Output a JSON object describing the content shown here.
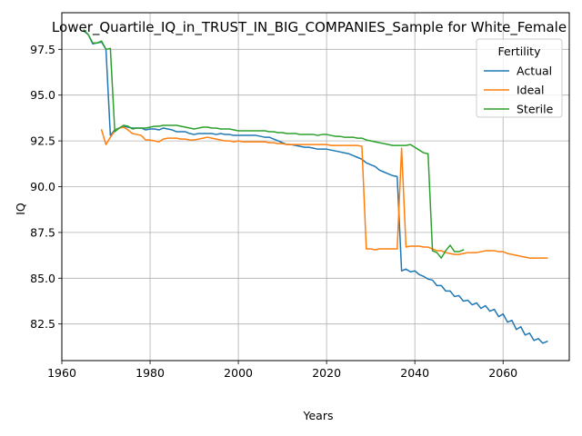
{
  "chart_data": {
    "type": "line",
    "title": "Lower_Quartile_IQ_in_TRUST_IN_BIG_COMPANIES_Sample for White_Female",
    "xlabel": "Years",
    "ylabel": "IQ",
    "xlim": [
      1960,
      2075
    ],
    "ylim": [
      80.5,
      99.5
    ],
    "xticks": [
      1960,
      1980,
      2000,
      2020,
      2040,
      2060
    ],
    "yticks": [
      82.5,
      85.0,
      87.5,
      90.0,
      92.5,
      95.0,
      97.5
    ],
    "grid": true,
    "legend": {
      "title": "Fertility",
      "position": "top-right"
    },
    "series": [
      {
        "name": "Actual",
        "color": "#1f77b4",
        "points": [
          [
            1965,
            98.5
          ],
          [
            1966,
            98.3
          ],
          [
            1967,
            97.8
          ],
          [
            1968,
            97.85
          ],
          [
            1969,
            97.9
          ],
          [
            1970,
            97.5
          ],
          [
            1971,
            92.8
          ],
          [
            1972,
            93.1
          ],
          [
            1973,
            93.2
          ],
          [
            1974,
            93.3
          ],
          [
            1975,
            93.25
          ],
          [
            1976,
            93.2
          ],
          [
            1977,
            93.2
          ],
          [
            1978,
            93.2
          ],
          [
            1979,
            93.1
          ],
          [
            1980,
            93.15
          ],
          [
            1981,
            93.15
          ],
          [
            1982,
            93.1
          ],
          [
            1983,
            93.2
          ],
          [
            1984,
            93.15
          ],
          [
            1985,
            93.1
          ],
          [
            1986,
            93.0
          ],
          [
            1987,
            93.0
          ],
          [
            1988,
            93.0
          ],
          [
            1989,
            92.9
          ],
          [
            1990,
            92.85
          ],
          [
            1991,
            92.9
          ],
          [
            1992,
            92.9
          ],
          [
            1993,
            92.9
          ],
          [
            1994,
            92.9
          ],
          [
            1995,
            92.85
          ],
          [
            1996,
            92.9
          ],
          [
            1997,
            92.85
          ],
          [
            1998,
            92.85
          ],
          [
            1999,
            92.8
          ],
          [
            2000,
            92.8
          ],
          [
            2001,
            92.8
          ],
          [
            2002,
            92.8
          ],
          [
            2003,
            92.8
          ],
          [
            2004,
            92.8
          ],
          [
            2005,
            92.75
          ],
          [
            2006,
            92.7
          ],
          [
            2007,
            92.7
          ],
          [
            2008,
            92.6
          ],
          [
            2009,
            92.5
          ],
          [
            2010,
            92.4
          ],
          [
            2011,
            92.3
          ],
          [
            2012,
            92.3
          ],
          [
            2013,
            92.25
          ],
          [
            2014,
            92.2
          ],
          [
            2015,
            92.15
          ],
          [
            2016,
            92.15
          ],
          [
            2017,
            92.1
          ],
          [
            2018,
            92.05
          ],
          [
            2019,
            92.05
          ],
          [
            2020,
            92.05
          ],
          [
            2021,
            92.0
          ],
          [
            2022,
            91.95
          ],
          [
            2023,
            91.9
          ],
          [
            2024,
            91.85
          ],
          [
            2025,
            91.8
          ],
          [
            2026,
            91.7
          ],
          [
            2027,
            91.6
          ],
          [
            2028,
            91.5
          ],
          [
            2029,
            91.3
          ],
          [
            2030,
            91.2
          ],
          [
            2031,
            91.1
          ],
          [
            2032,
            90.9
          ],
          [
            2033,
            90.8
          ],
          [
            2034,
            90.7
          ],
          [
            2035,
            90.6
          ],
          [
            2036,
            90.55
          ],
          [
            2037,
            85.4
          ],
          [
            2038,
            85.5
          ],
          [
            2039,
            85.35
          ],
          [
            2040,
            85.4
          ],
          [
            2041,
            85.2
          ],
          [
            2042,
            85.1
          ],
          [
            2043,
            84.95
          ],
          [
            2044,
            84.9
          ],
          [
            2045,
            84.6
          ],
          [
            2046,
            84.6
          ],
          [
            2047,
            84.3
          ],
          [
            2048,
            84.3
          ],
          [
            2049,
            84.0
          ],
          [
            2050,
            84.05
          ],
          [
            2051,
            83.75
          ],
          [
            2052,
            83.8
          ],
          [
            2053,
            83.55
          ],
          [
            2054,
            83.65
          ],
          [
            2055,
            83.35
          ],
          [
            2056,
            83.5
          ],
          [
            2057,
            83.2
          ],
          [
            2058,
            83.3
          ],
          [
            2059,
            82.9
          ],
          [
            2060,
            83.05
          ],
          [
            2061,
            82.6
          ],
          [
            2062,
            82.7
          ],
          [
            2063,
            82.2
          ],
          [
            2064,
            82.35
          ],
          [
            2065,
            81.9
          ],
          [
            2066,
            82.0
          ],
          [
            2067,
            81.6
          ],
          [
            2068,
            81.7
          ],
          [
            2069,
            81.45
          ],
          [
            2070,
            81.55
          ]
        ]
      },
      {
        "name": "Ideal",
        "color": "#ff7f0e",
        "points": [
          [
            1969,
            93.1
          ],
          [
            1970,
            92.3
          ],
          [
            1971,
            92.7
          ],
          [
            1972,
            93.05
          ],
          [
            1973,
            93.2
          ],
          [
            1974,
            93.25
          ],
          [
            1975,
            93.1
          ],
          [
            1976,
            92.9
          ],
          [
            1977,
            92.85
          ],
          [
            1978,
            92.8
          ],
          [
            1979,
            92.55
          ],
          [
            1980,
            92.55
          ],
          [
            1981,
            92.5
          ],
          [
            1982,
            92.45
          ],
          [
            1983,
            92.6
          ],
          [
            1984,
            92.65
          ],
          [
            1985,
            92.65
          ],
          [
            1986,
            92.65
          ],
          [
            1987,
            92.6
          ],
          [
            1988,
            92.6
          ],
          [
            1989,
            92.55
          ],
          [
            1990,
            92.55
          ],
          [
            1991,
            92.6
          ],
          [
            1992,
            92.65
          ],
          [
            1993,
            92.7
          ],
          [
            1994,
            92.65
          ],
          [
            1995,
            92.6
          ],
          [
            1996,
            92.55
          ],
          [
            1997,
            92.5
          ],
          [
            1998,
            92.5
          ],
          [
            1999,
            92.45
          ],
          [
            2000,
            92.5
          ],
          [
            2001,
            92.45
          ],
          [
            2002,
            92.45
          ],
          [
            2003,
            92.45
          ],
          [
            2004,
            92.45
          ],
          [
            2005,
            92.45
          ],
          [
            2006,
            92.45
          ],
          [
            2007,
            92.4
          ],
          [
            2008,
            92.4
          ],
          [
            2009,
            92.35
          ],
          [
            2010,
            92.35
          ],
          [
            2011,
            92.3
          ],
          [
            2012,
            92.3
          ],
          [
            2013,
            92.3
          ],
          [
            2014,
            92.3
          ],
          [
            2015,
            92.3
          ],
          [
            2016,
            92.3
          ],
          [
            2017,
            92.3
          ],
          [
            2018,
            92.3
          ],
          [
            2019,
            92.3
          ],
          [
            2020,
            92.3
          ],
          [
            2021,
            92.25
          ],
          [
            2022,
            92.25
          ],
          [
            2023,
            92.25
          ],
          [
            2024,
            92.25
          ],
          [
            2025,
            92.25
          ],
          [
            2026,
            92.25
          ],
          [
            2027,
            92.25
          ],
          [
            2028,
            92.2
          ],
          [
            2029,
            86.6
          ],
          [
            2030,
            86.6
          ],
          [
            2031,
            86.55
          ],
          [
            2032,
            86.6
          ],
          [
            2033,
            86.6
          ],
          [
            2034,
            86.6
          ],
          [
            2035,
            86.6
          ],
          [
            2036,
            86.6
          ],
          [
            2037,
            92.1
          ],
          [
            2038,
            86.7
          ],
          [
            2039,
            86.75
          ],
          [
            2040,
            86.75
          ],
          [
            2041,
            86.75
          ],
          [
            2042,
            86.7
          ],
          [
            2043,
            86.7
          ],
          [
            2044,
            86.6
          ],
          [
            2045,
            86.5
          ],
          [
            2046,
            86.5
          ],
          [
            2047,
            86.4
          ],
          [
            2048,
            86.35
          ],
          [
            2049,
            86.3
          ],
          [
            2050,
            86.3
          ],
          [
            2051,
            86.35
          ],
          [
            2052,
            86.4
          ],
          [
            2053,
            86.4
          ],
          [
            2054,
            86.4
          ],
          [
            2055,
            86.45
          ],
          [
            2056,
            86.5
          ],
          [
            2057,
            86.5
          ],
          [
            2058,
            86.5
          ],
          [
            2059,
            86.45
          ],
          [
            2060,
            86.45
          ],
          [
            2061,
            86.35
          ],
          [
            2062,
            86.3
          ],
          [
            2063,
            86.25
          ],
          [
            2064,
            86.2
          ],
          [
            2065,
            86.15
          ],
          [
            2066,
            86.1
          ],
          [
            2067,
            86.1
          ],
          [
            2068,
            86.1
          ],
          [
            2069,
            86.1
          ],
          [
            2070,
            86.1
          ]
        ]
      },
      {
        "name": "Sterile",
        "color": "#2ca02c",
        "points": [
          [
            1965,
            98.55
          ],
          [
            1966,
            98.3
          ],
          [
            1967,
            97.85
          ],
          [
            1968,
            97.85
          ],
          [
            1969,
            97.95
          ],
          [
            1970,
            97.5
          ],
          [
            1971,
            97.55
          ],
          [
            1972,
            93.0
          ],
          [
            1973,
            93.2
          ],
          [
            1974,
            93.35
          ],
          [
            1975,
            93.3
          ],
          [
            1976,
            93.15
          ],
          [
            1977,
            93.2
          ],
          [
            1978,
            93.2
          ],
          [
            1979,
            93.2
          ],
          [
            1980,
            93.25
          ],
          [
            1981,
            93.3
          ],
          [
            1982,
            93.3
          ],
          [
            1983,
            93.35
          ],
          [
            1984,
            93.35
          ],
          [
            1985,
            93.35
          ],
          [
            1986,
            93.35
          ],
          [
            1987,
            93.3
          ],
          [
            1988,
            93.25
          ],
          [
            1989,
            93.2
          ],
          [
            1990,
            93.15
          ],
          [
            1991,
            93.2
          ],
          [
            1992,
            93.25
          ],
          [
            1993,
            93.25
          ],
          [
            1994,
            93.2
          ],
          [
            1995,
            93.2
          ],
          [
            1996,
            93.15
          ],
          [
            1997,
            93.15
          ],
          [
            1998,
            93.15
          ],
          [
            1999,
            93.1
          ],
          [
            2000,
            93.05
          ],
          [
            2001,
            93.05
          ],
          [
            2002,
            93.05
          ],
          [
            2003,
            93.05
          ],
          [
            2004,
            93.05
          ],
          [
            2005,
            93.05
          ],
          [
            2006,
            93.05
          ],
          [
            2007,
            93.0
          ],
          [
            2008,
            93.0
          ],
          [
            2009,
            92.95
          ],
          [
            2010,
            92.95
          ],
          [
            2011,
            92.9
          ],
          [
            2012,
            92.9
          ],
          [
            2013,
            92.9
          ],
          [
            2014,
            92.85
          ],
          [
            2015,
            92.85
          ],
          [
            2016,
            92.85
          ],
          [
            2017,
            92.85
          ],
          [
            2018,
            92.8
          ],
          [
            2019,
            92.85
          ],
          [
            2020,
            92.85
          ],
          [
            2021,
            92.8
          ],
          [
            2022,
            92.75
          ],
          [
            2023,
            92.75
          ],
          [
            2024,
            92.7
          ],
          [
            2025,
            92.7
          ],
          [
            2026,
            92.7
          ],
          [
            2027,
            92.65
          ],
          [
            2028,
            92.65
          ],
          [
            2029,
            92.55
          ],
          [
            2030,
            92.5
          ],
          [
            2031,
            92.45
          ],
          [
            2032,
            92.4
          ],
          [
            2033,
            92.35
          ],
          [
            2034,
            92.3
          ],
          [
            2035,
            92.25
          ],
          [
            2036,
            92.25
          ],
          [
            2037,
            92.25
          ],
          [
            2038,
            92.25
          ],
          [
            2039,
            92.3
          ],
          [
            2040,
            92.15
          ],
          [
            2041,
            92.0
          ],
          [
            2042,
            91.85
          ],
          [
            2043,
            91.8
          ],
          [
            2044,
            86.5
          ],
          [
            2045,
            86.4
          ],
          [
            2046,
            86.1
          ],
          [
            2047,
            86.5
          ],
          [
            2048,
            86.8
          ],
          [
            2049,
            86.45
          ],
          [
            2050,
            86.45
          ],
          [
            2051,
            86.55
          ]
        ]
      }
    ]
  }
}
